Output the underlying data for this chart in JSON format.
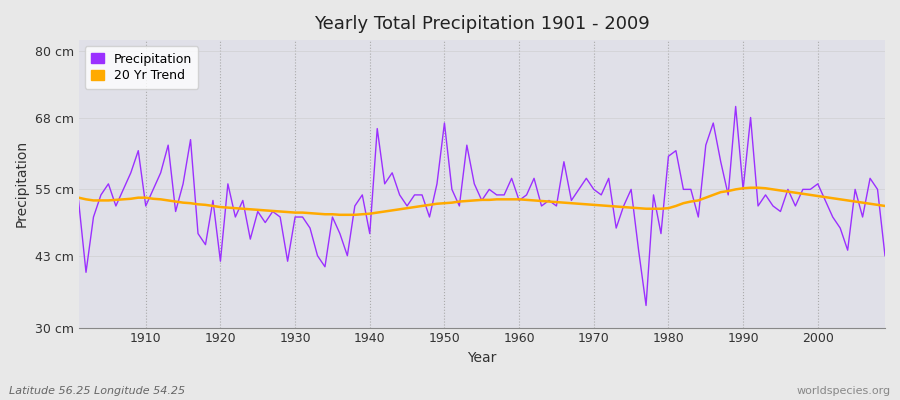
{
  "title": "Yearly Total Precipitation 1901 - 2009",
  "xlabel": "Year",
  "ylabel": "Precipitation",
  "subtitle": "Latitude 56.25 Longitude 54.25",
  "watermark": "worldspecies.org",
  "ylim": [
    30,
    82
  ],
  "yticks": [
    30,
    43,
    55,
    68,
    80
  ],
  "ytick_labels": [
    "30 cm",
    "43 cm",
    "55 cm",
    "68 cm",
    "80 cm"
  ],
  "xticks": [
    1910,
    1920,
    1930,
    1940,
    1950,
    1960,
    1970,
    1980,
    1990,
    2000
  ],
  "precip_color": "#9b30ff",
  "trend_color": "#ffaa00",
  "plot_bg_color": "#e0e0e8",
  "fig_bg_color": "#e8e8e8",
  "years": [
    1901,
    1902,
    1903,
    1904,
    1905,
    1906,
    1907,
    1908,
    1909,
    1910,
    1911,
    1912,
    1913,
    1914,
    1915,
    1916,
    1917,
    1918,
    1919,
    1920,
    1921,
    1922,
    1923,
    1924,
    1925,
    1926,
    1927,
    1928,
    1929,
    1930,
    1931,
    1932,
    1933,
    1934,
    1935,
    1936,
    1937,
    1938,
    1939,
    1940,
    1941,
    1942,
    1943,
    1944,
    1945,
    1946,
    1947,
    1948,
    1949,
    1950,
    1951,
    1952,
    1953,
    1954,
    1955,
    1956,
    1957,
    1958,
    1959,
    1960,
    1961,
    1962,
    1963,
    1964,
    1965,
    1966,
    1967,
    1968,
    1969,
    1970,
    1971,
    1972,
    1973,
    1974,
    1975,
    1976,
    1977,
    1978,
    1979,
    1980,
    1981,
    1982,
    1983,
    1984,
    1985,
    1986,
    1987,
    1988,
    1989,
    1990,
    1991,
    1992,
    1993,
    1994,
    1995,
    1996,
    1997,
    1998,
    1999,
    2000,
    2001,
    2002,
    2003,
    2004,
    2005,
    2006,
    2007,
    2008,
    2009
  ],
  "precip": [
    53,
    40,
    50,
    54,
    56,
    52,
    55,
    58,
    62,
    52,
    55,
    58,
    63,
    51,
    56,
    64,
    47,
    45,
    53,
    42,
    56,
    50,
    53,
    46,
    51,
    49,
    51,
    50,
    42,
    50,
    50,
    48,
    43,
    41,
    50,
    47,
    43,
    52,
    54,
    47,
    66,
    56,
    58,
    54,
    52,
    54,
    54,
    50,
    56,
    67,
    55,
    52,
    63,
    56,
    53,
    55,
    54,
    54,
    57,
    53,
    54,
    57,
    52,
    53,
    52,
    60,
    53,
    55,
    57,
    55,
    54,
    57,
    48,
    52,
    55,
    44,
    34,
    54,
    47,
    61,
    62,
    55,
    55,
    50,
    63,
    67,
    60,
    54,
    70,
    55,
    68,
    52,
    54,
    52,
    51,
    55,
    52,
    55,
    55,
    56,
    53,
    50,
    48,
    44,
    55,
    50,
    57,
    55,
    43
  ],
  "trend": [
    53.5,
    53.2,
    53.0,
    53.0,
    53.0,
    53.1,
    53.2,
    53.3,
    53.5,
    53.5,
    53.3,
    53.2,
    53.0,
    52.8,
    52.6,
    52.5,
    52.3,
    52.2,
    52.0,
    51.8,
    51.7,
    51.6,
    51.5,
    51.4,
    51.3,
    51.2,
    51.1,
    51.0,
    50.9,
    50.8,
    50.8,
    50.7,
    50.6,
    50.5,
    50.5,
    50.4,
    50.4,
    50.4,
    50.5,
    50.6,
    50.8,
    51.0,
    51.2,
    51.4,
    51.6,
    51.8,
    52.0,
    52.2,
    52.4,
    52.5,
    52.6,
    52.8,
    52.9,
    53.0,
    53.1,
    53.1,
    53.2,
    53.2,
    53.2,
    53.2,
    53.1,
    53.0,
    52.9,
    52.8,
    52.7,
    52.6,
    52.5,
    52.4,
    52.3,
    52.2,
    52.1,
    52.0,
    51.9,
    51.8,
    51.7,
    51.6,
    51.5,
    51.5,
    51.5,
    51.6,
    52.0,
    52.5,
    52.8,
    53.0,
    53.5,
    54.0,
    54.5,
    54.7,
    55.0,
    55.2,
    55.3,
    55.3,
    55.2,
    55.0,
    54.8,
    54.6,
    54.4,
    54.2,
    54.0,
    53.8,
    53.6,
    53.4,
    53.2,
    53.0,
    52.8,
    52.6,
    52.4,
    52.2,
    52.0
  ]
}
